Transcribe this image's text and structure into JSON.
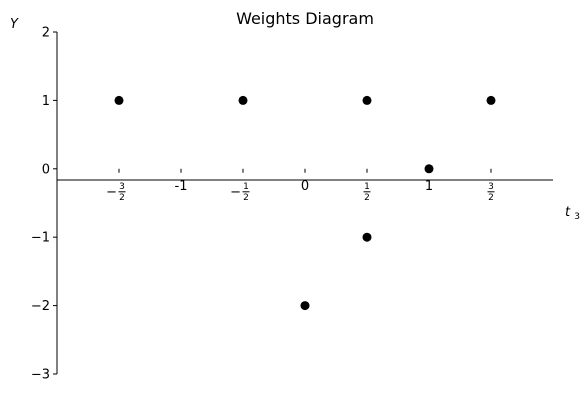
{
  "chart_data": {
    "type": "scatter",
    "title": "Weights Diagram",
    "xlabel": "t",
    "xlabel_subscript": "3",
    "ylabel": "Y",
    "xlim": [
      -2,
      2
    ],
    "ylim": [
      -3,
      2
    ],
    "grid": false,
    "x_ticks": [
      {
        "value": -1.5,
        "kind": "frac",
        "sign": "−",
        "num": "3",
        "den": "2"
      },
      {
        "value": -1,
        "kind": "text",
        "label": "-1"
      },
      {
        "value": -0.5,
        "kind": "frac",
        "sign": "−",
        "num": "1",
        "den": "2"
      },
      {
        "value": 0,
        "kind": "text",
        "label": "0"
      },
      {
        "value": 0.5,
        "kind": "frac",
        "sign": "",
        "num": "1",
        "den": "2"
      },
      {
        "value": 1,
        "kind": "text",
        "label": "1"
      },
      {
        "value": 1.5,
        "kind": "frac",
        "sign": "",
        "num": "3",
        "den": "2"
      }
    ],
    "y_ticks": [
      {
        "value": 2,
        "label": "2"
      },
      {
        "value": 1,
        "label": "1"
      },
      {
        "value": 0,
        "label": "0"
      },
      {
        "value": -1,
        "label": "−1"
      },
      {
        "value": -2,
        "label": "−2"
      },
      {
        "value": -3,
        "label": "−3"
      }
    ],
    "points": [
      {
        "x": -1.5,
        "y": 1
      },
      {
        "x": -0.5,
        "y": 1
      },
      {
        "x": 0.5,
        "y": 1
      },
      {
        "x": 1.5,
        "y": 1
      },
      {
        "x": 1,
        "y": 0
      },
      {
        "x": 0.5,
        "y": -1
      },
      {
        "x": 0,
        "y": -2
      }
    ],
    "marker_color": "#000000"
  }
}
